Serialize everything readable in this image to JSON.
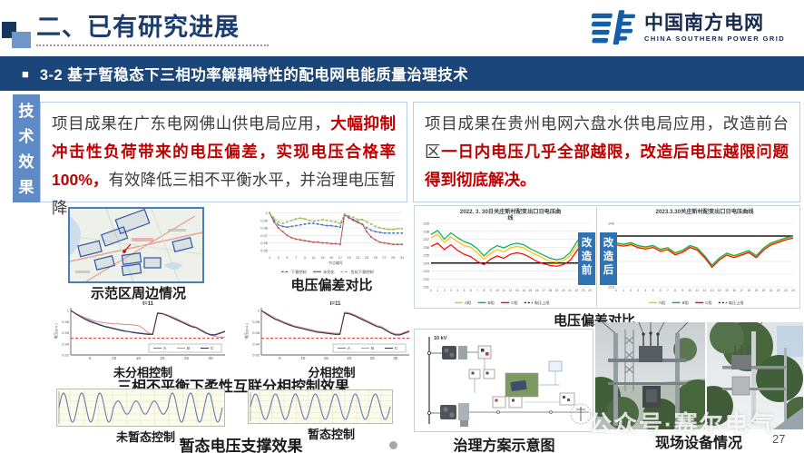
{
  "header": {
    "title": "二、已有研究进展",
    "logo_name": "中国南方电网",
    "logo_sub": "CHINA SOUTHERN POWER GRID"
  },
  "banner": {
    "bullet": "■",
    "title": "3-2 基于暂稳态下三相功率解耦特性的配电网电能质量治理技术"
  },
  "sidebar": {
    "label": "技术效果"
  },
  "left_panel": {
    "p1": "项目成果在广东电网佛山供电局应用，",
    "p2": "大幅抑制冲击性负荷带来的电压偏差，实现电压合格率100%，",
    "p3": "有效降低三相不平衡水平，并治理电压暂降。"
  },
  "right_panel": {
    "p1": "项目成果在贵州电网六盘水供电局应用，改造前台区",
    "p2": "一日内电压几乎全部越限，改造后电压越限问题得到彻底解决。"
  },
  "captions": {
    "map": "示范区周边情况",
    "dev_left": "电压偏差对比",
    "unsplit": "未分相控制",
    "split": "分相控制",
    "phase": "三相不平衡下柔性互联分相控制效果",
    "wave_before": "未暂态控制",
    "wave_after": "暂态控制",
    "wave": "暂态电压支撑效果",
    "dev_right": "电压偏差对比",
    "scheme": "治理方案示意图",
    "site": "现场设备情况"
  },
  "badges": {
    "before": "改造前",
    "after": "改造后"
  },
  "scheme": {
    "bus_label": "10 kV"
  },
  "watermark": "公众号·赛尔电气",
  "page_number": "27",
  "colors": {
    "banner": "#1b4679",
    "accent_red": "#c00000",
    "sidebar": "#5e8ac6",
    "phase_a": "#FFC000",
    "phase_b": "#00B050",
    "phase_c": "#FF0000",
    "limit": "#1a1a1a"
  },
  "chart_data": {
    "node_cmp": {
      "type": "line",
      "xlabel": "节点编号",
      "xlim": [
        1,
        31
      ],
      "ylim": [
        0.945,
        1.003
      ],
      "xticks": [
        1,
        3,
        5,
        7,
        9,
        11,
        13,
        15,
        17,
        19,
        21,
        23,
        25,
        27,
        29,
        31
      ],
      "xtick_fs": 3.8,
      "yticks": [
        0.95,
        0.96,
        0.97,
        0.98,
        0.99,
        1.0
      ],
      "grid": true,
      "legend": "bottom",
      "margin": {
        "l": 14,
        "r": 4,
        "t": 6,
        "b": 24
      },
      "series": [
        {
          "name": "下垂控制",
          "color": "#4472C4",
          "dash": "3 1.5",
          "marker": true,
          "values": [
            1.0,
            0.99,
            0.984,
            0.982,
            0.981,
            0.982,
            0.983,
            0.984,
            0.985,
            0.986,
            0.986,
            0.985,
            0.984,
            0.983,
            0.983,
            0.982,
            0.981,
            0.997,
            0.993,
            0.99,
            0.987,
            0.985,
            0.98,
            0.977,
            0.975,
            0.974,
            0.973,
            0.973,
            0.973,
            0.973,
            0.973
          ]
        },
        {
          "name": "未优化",
          "color": "#C0504D",
          "dash": "",
          "marker": true,
          "values": [
            1.0,
            0.988,
            0.98,
            0.975,
            0.97,
            0.967,
            0.965,
            0.964,
            0.963,
            0.962,
            0.961,
            0.961,
            0.96,
            0.96,
            0.959,
            0.959,
            0.958,
            0.998,
            0.994,
            0.991,
            0.988,
            0.985,
            0.975,
            0.968,
            0.964,
            0.961,
            0.96,
            0.959,
            0.958,
            0.958,
            0.958
          ]
        },
        {
          "name": "优化下垂控制",
          "color": "#9BBB59",
          "dash": "3 1.5",
          "marker": true,
          "values": [
            1.0,
            0.993,
            0.988,
            0.986,
            0.988,
            0.99,
            0.992,
            0.993,
            0.992,
            0.99,
            0.989,
            0.99,
            0.991,
            0.99,
            0.989,
            0.988,
            0.986,
            0.998,
            0.996,
            0.994,
            0.991,
            0.991,
            0.988,
            0.985,
            0.982,
            0.98,
            0.979,
            0.978,
            0.978,
            0.979,
            0.979
          ]
        }
      ]
    },
    "phase_before": {
      "type": "line",
      "title": "t=11",
      "ylabel": "电压(p.u.)",
      "xlim": [
        1,
        33
      ],
      "ylim": [
        0.92,
        1.005
      ],
      "xticks": [
        5,
        10,
        15,
        20,
        25,
        30
      ],
      "xtick_fs": 4.5,
      "yticks": [
        0.92,
        0.94,
        0.96,
        0.98,
        1.0
      ],
      "axis": true,
      "threshold": 0.95,
      "legend": "box",
      "margin": {
        "l": 20,
        "r": 5,
        "t": 9,
        "b": 13
      },
      "series": [
        {
          "name": "A",
          "color": "#6677cc",
          "values": [
            1,
            0.995,
            0.99,
            0.985,
            0.982,
            0.978,
            0.975,
            0.972,
            0.97,
            0.968,
            0.966,
            0.964,
            0.962,
            0.961,
            0.96,
            0.959,
            0.958,
            0.958,
            0.996,
            0.995,
            0.992,
            0.988,
            0.984,
            0.98,
            0.976,
            0.972,
            0.97,
            0.965,
            0.96,
            0.957,
            0.957,
            0.96,
            0.963
          ]
        },
        {
          "name": "B",
          "color": "#dd8888",
          "values": [
            1,
            0.995,
            0.991,
            0.987,
            0.984,
            0.981,
            0.979,
            0.978,
            0.977,
            0.976,
            0.976,
            0.975,
            0.975,
            0.974,
            0.973,
            0.968,
            0.96,
            0.958,
            0.996,
            0.995,
            0.992,
            0.989,
            0.985,
            0.981,
            0.977,
            0.973,
            0.97,
            0.966,
            0.961,
            0.956,
            0.953,
            0.952,
            0.952
          ]
        },
        {
          "name": "C",
          "color": "#333333",
          "values": [
            1,
            0.994,
            0.989,
            0.984,
            0.98,
            0.977,
            0.974,
            0.971,
            0.969,
            0.967,
            0.965,
            0.963,
            0.962,
            0.96,
            0.959,
            0.958,
            0.957,
            0.957,
            0.995,
            0.994,
            0.991,
            0.987,
            0.983,
            0.979,
            0.975,
            0.971,
            0.969,
            0.964,
            0.959,
            0.956,
            0.956,
            0.959,
            0.962
          ]
        }
      ]
    },
    "phase_after": {
      "type": "line",
      "title": "t=11",
      "ylabel": "电压(p.u.)",
      "xlim": [
        1,
        33
      ],
      "ylim": [
        0.92,
        1.005
      ],
      "xticks": [
        5,
        10,
        15,
        20,
        25,
        30
      ],
      "xtick_fs": 4.5,
      "yticks": [
        0.92,
        0.94,
        0.96,
        0.98,
        1.0
      ],
      "axis": true,
      "threshold": 0.95,
      "legend": "box",
      "margin": {
        "l": 20,
        "r": 5,
        "t": 9,
        "b": 13
      },
      "series": [
        {
          "name": "A",
          "color": "#6677cc",
          "values": [
            1,
            0.995,
            0.99,
            0.985,
            0.982,
            0.978,
            0.975,
            0.972,
            0.97,
            0.968,
            0.966,
            0.964,
            0.962,
            0.961,
            0.96,
            0.959,
            0.958,
            0.958,
            0.996,
            0.995,
            0.992,
            0.988,
            0.984,
            0.98,
            0.976,
            0.972,
            0.97,
            0.965,
            0.96,
            0.957,
            0.957,
            0.96,
            0.963
          ]
        },
        {
          "name": "B",
          "color": "#dd8888",
          "values": [
            1,
            0.996,
            0.991,
            0.986,
            0.983,
            0.979,
            0.976,
            0.973,
            0.971,
            0.969,
            0.967,
            0.965,
            0.963,
            0.962,
            0.961,
            0.96,
            0.959,
            0.959,
            0.997,
            0.996,
            0.993,
            0.989,
            0.985,
            0.981,
            0.977,
            0.973,
            0.971,
            0.966,
            0.961,
            0.958,
            0.958,
            0.961,
            0.964
          ]
        },
        {
          "name": "C",
          "color": "#333333",
          "values": [
            1,
            0.994,
            0.989,
            0.984,
            0.981,
            0.977,
            0.974,
            0.971,
            0.969,
            0.967,
            0.965,
            0.963,
            0.961,
            0.96,
            0.959,
            0.958,
            0.957,
            0.957,
            0.995,
            0.994,
            0.991,
            0.987,
            0.983,
            0.979,
            0.975,
            0.971,
            0.969,
            0.964,
            0.959,
            0.956,
            0.956,
            0.959,
            0.962
          ]
        }
      ]
    },
    "wave_before": {
      "type": "wave",
      "amplitudes": [
        1,
        1,
        1,
        0.45,
        0.45,
        0.45,
        1,
        1,
        1
      ]
    },
    "wave_after": {
      "type": "wave",
      "amplitudes": [
        1,
        1,
        1,
        1,
        1,
        1,
        1
      ]
    },
    "day_before": {
      "type": "line",
      "title_lines": [
        "2022. 3. 30日关庄新村配变出口日电压曲",
        "线"
      ],
      "xlim": [
        0,
        24
      ],
      "ylim": [
        231,
        239
      ],
      "xticks": [
        0,
        1,
        2,
        3,
        4,
        5,
        6,
        7,
        8,
        9,
        10,
        11,
        12,
        13,
        14,
        15,
        16,
        17,
        18,
        19,
        20,
        21,
        22,
        23,
        24
      ],
      "xtick_fs": 3.2,
      "yticks": [
        231,
        232,
        233,
        234,
        235,
        236,
        237,
        238,
        239
      ],
      "grid": true,
      "limit": 234,
      "legend": "bottom",
      "extra_legend": {
        "name": "电压上限",
        "color": "#1a1a1a",
        "dash": "2 2"
      },
      "margin": {
        "l": 17,
        "r": 6,
        "t": 18,
        "b": 22
      },
      "series": [
        {
          "name": "A相",
          "color": "#FFC000",
          "width": 1.2,
          "values": [
            237.2,
            237.6,
            236.6,
            237.3,
            236.7,
            236.2,
            236,
            235.3,
            234.5,
            235.2,
            235.7,
            235.4,
            235.9,
            236.1,
            235.9,
            235.4,
            235,
            234.6,
            234.2,
            234.1,
            234.3,
            234.9,
            236.1,
            237.3,
            236.6
          ]
        },
        {
          "name": "B相",
          "color": "#00B050",
          "width": 1.2,
          "values": [
            237.6,
            238.1,
            237,
            237.8,
            237.2,
            236.7,
            236.4,
            235.8,
            234.9,
            235.7,
            236.2,
            235.9,
            236.3,
            236.5,
            236.3,
            235.8,
            235.4,
            235,
            234.6,
            234.4,
            234.6,
            235.3,
            236.6,
            237.8,
            237.1
          ]
        },
        {
          "name": "C相",
          "color": "#FF0000",
          "width": 1.2,
          "values": [
            236.1,
            236.5,
            235.7,
            236.3,
            235.6,
            235.1,
            234.8,
            234.2,
            233.8,
            234.5,
            234.9,
            234.6,
            235.1,
            235.3,
            235.1,
            234.7,
            234.2,
            233.9,
            233.7,
            233.6,
            233.8,
            234.3,
            235.5,
            236.6,
            236
          ]
        }
      ]
    },
    "day_after": {
      "type": "line",
      "title_lines": [
        "2023.3.30关庄新村配变出口日电压曲线"
      ],
      "xlim": [
        0,
        24
      ],
      "ylim": [
        215,
        240
      ],
      "xticks": [
        0,
        1,
        2,
        3,
        4,
        5,
        6,
        7,
        8,
        9,
        10,
        11,
        12,
        13,
        14,
        15,
        16,
        17,
        18,
        19,
        20,
        21,
        22,
        23,
        24
      ],
      "xtick_fs": 3.2,
      "yticks": [
        215,
        220,
        225,
        230,
        235,
        240
      ],
      "grid": true,
      "limit": 235,
      "legend": "bottom",
      "extra_legend": {
        "name": "电压上限",
        "color": "#1a1a1a",
        "dash": "2 2"
      },
      "margin": {
        "l": 17,
        "r": 6,
        "t": 18,
        "b": 22
      },
      "series": [
        {
          "name": "A相",
          "color": "#FFC000",
          "width": 1.2,
          "values": [
            232,
            231.5,
            232.1,
            230.9,
            230.4,
            231,
            229.5,
            230.1,
            228.1,
            229.1,
            231,
            230,
            227,
            223.2,
            226.1,
            228,
            227,
            228,
            229,
            227,
            230,
            232,
            233,
            234,
            234.7
          ]
        },
        {
          "name": "B相",
          "color": "#00B050",
          "width": 1.2,
          "values": [
            232.3,
            231.8,
            232.4,
            231.2,
            230.7,
            231.3,
            229.8,
            230.4,
            228.4,
            229.4,
            231.3,
            230.3,
            227.3,
            223.5,
            226.4,
            228.3,
            227.3,
            228.3,
            229.3,
            227.3,
            230.3,
            232.3,
            233.3,
            234.3,
            235
          ]
        },
        {
          "name": "C相",
          "color": "#FF0000",
          "width": 1.2,
          "values": [
            231.5,
            231,
            231.6,
            230.4,
            229.9,
            230.5,
            229,
            229.6,
            227.6,
            228.6,
            230.5,
            229.5,
            226.5,
            222.7,
            225.6,
            227.5,
            226.5,
            227.5,
            228.5,
            226.5,
            229.5,
            231.5,
            232.5,
            233.5,
            234.2
          ]
        }
      ]
    }
  }
}
